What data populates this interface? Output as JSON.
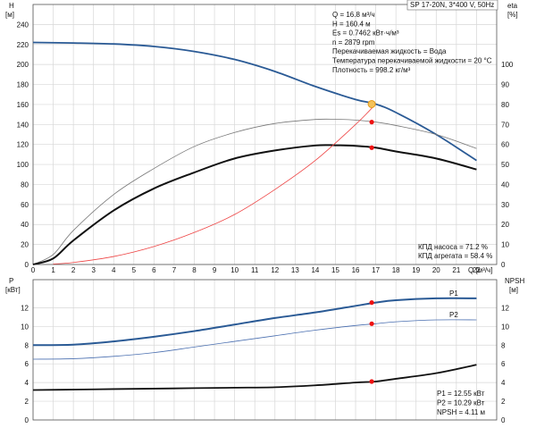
{
  "chart_data": [
    {
      "type": "line",
      "title": "",
      "model_label": "SP 17-20N, 3*400 V, 50Hz",
      "x_axis": {
        "label": "Q [м³/ч]",
        "range": [
          0,
          23
        ],
        "ticks": [
          0,
          1,
          2,
          3,
          4,
          5,
          6,
          7,
          8,
          9,
          10,
          11,
          12,
          13,
          14,
          15,
          16,
          17,
          18,
          19,
          20,
          21,
          22
        ]
      },
      "y_left": {
        "label_top": "H",
        "label_unit": "[м]",
        "range": [
          0,
          260
        ],
        "ticks": [
          0,
          20,
          40,
          60,
          80,
          100,
          120,
          140,
          160,
          180,
          200,
          220,
          240
        ]
      },
      "y_right": {
        "label_top": "eta",
        "label_unit": "[%]",
        "range": [
          0,
          130
        ],
        "ticks": [
          0,
          10,
          20,
          30,
          40,
          50,
          60,
          70,
          80,
          90,
          100
        ]
      },
      "grid": true,
      "series": [
        {
          "name": "",
          "color": "#2a5a95",
          "axis": "left",
          "x": [
            0,
            2,
            4,
            6,
            8,
            10,
            12,
            14,
            16,
            17,
            18,
            20,
            22
          ],
          "y": [
            222,
            221.5,
            220.5,
            218,
            213,
            205,
            193,
            178,
            165,
            160.4,
            152,
            130,
            104
          ]
        },
        {
          "name": "",
          "color": "#777777",
          "axis": "right",
          "x": [
            0,
            1,
            2,
            4,
            6,
            8,
            10,
            12,
            14,
            15,
            16,
            17,
            18,
            20,
            22
          ],
          "y": [
            0,
            5,
            17,
            35,
            48,
            59,
            66,
            70.5,
            72.5,
            72.6,
            72.2,
            71.2,
            69.5,
            65,
            58
          ]
        },
        {
          "name": "",
          "color": "#111111",
          "axis": "right",
          "x": [
            0,
            1,
            2,
            4,
            6,
            8,
            10,
            12,
            14,
            15,
            16,
            17,
            18,
            20,
            22
          ],
          "y": [
            0,
            3,
            12,
            27,
            38,
            46,
            53,
            57,
            59.5,
            59.6,
            59.3,
            58.4,
            56.5,
            53,
            47.5
          ]
        },
        {
          "name": "",
          "color": "#ee4444",
          "axis": "left",
          "x": [
            1,
            2,
            4,
            6,
            8,
            10,
            12,
            14,
            16,
            17
          ],
          "y": [
            0.5,
            2,
            8,
            18,
            32,
            50,
            75,
            104,
            140,
            160.4
          ]
        }
      ],
      "duty_points": [
        {
          "x": 16.8,
          "y": 160.4,
          "axis": "left",
          "style": "orange"
        },
        {
          "x": 16.8,
          "y": 71.2,
          "axis": "right",
          "style": "red"
        },
        {
          "x": 16.8,
          "y": 58.4,
          "axis": "right",
          "style": "red"
        }
      ],
      "info_lines": [
        "Q = 16.8 м³/ч",
        "H = 160.4 м",
        "Es = 0.7462 кВт·ч/м³",
        "n = 2879 rpm",
        "Перекачиваемая жидкость = Вода",
        "Температура перекачиваемой жидкости = 20 °C",
        "Плотность = 998.2 кг/м³"
      ],
      "efficiency_lines": [
        "КПД насоса = 71.2 %",
        "КПД агрегата = 58.4 %"
      ]
    },
    {
      "type": "line",
      "title": "",
      "x_axis": {
        "range": [
          0,
          23
        ]
      },
      "y_left": {
        "label_top": "P",
        "label_unit": "[кВт]",
        "range": [
          0,
          15
        ],
        "ticks": [
          0,
          2,
          4,
          6,
          8,
          10,
          12
        ]
      },
      "y_right": {
        "label_top": "NPSH",
        "label_unit": "[м]",
        "range": [
          0,
          15
        ],
        "ticks": [
          0,
          2,
          4,
          6,
          8,
          10,
          12
        ]
      },
      "grid": true,
      "series": [
        {
          "name": "P1",
          "color": "#2a5a95",
          "axis": "left",
          "x": [
            0,
            2,
            4,
            6,
            8,
            10,
            12,
            14,
            16,
            17,
            18,
            20,
            22
          ],
          "y": [
            8.0,
            8.05,
            8.4,
            8.9,
            9.5,
            10.2,
            10.9,
            11.5,
            12.2,
            12.55,
            12.8,
            13.0,
            13.0
          ]
        },
        {
          "name": "P2",
          "color": "#4a6fb0",
          "axis": "left",
          "x": [
            0,
            2,
            4,
            6,
            8,
            10,
            12,
            14,
            16,
            17,
            18,
            20,
            22
          ],
          "y": [
            6.5,
            6.55,
            6.8,
            7.2,
            7.8,
            8.4,
            9.0,
            9.6,
            10.1,
            10.29,
            10.5,
            10.7,
            10.7
          ]
        },
        {
          "name": "",
          "color": "#111111",
          "axis": "right",
          "x": [
            0,
            2,
            4,
            6,
            8,
            10,
            12,
            14,
            16,
            17,
            18,
            20,
            22
          ],
          "y": [
            3.2,
            3.25,
            3.3,
            3.35,
            3.4,
            3.45,
            3.5,
            3.7,
            4.0,
            4.11,
            4.4,
            5.0,
            5.9
          ]
        }
      ],
      "duty_points": [
        {
          "x": 16.8,
          "y": 12.55,
          "axis": "left",
          "style": "red"
        },
        {
          "x": 16.8,
          "y": 10.29,
          "axis": "left",
          "style": "red"
        },
        {
          "x": 16.8,
          "y": 4.11,
          "axis": "right",
          "style": "red"
        }
      ],
      "info_lines": [
        "P1 = 12.55 кВт",
        "P2 = 10.29 кВт",
        "NPSH = 4.11 м"
      ]
    }
  ]
}
